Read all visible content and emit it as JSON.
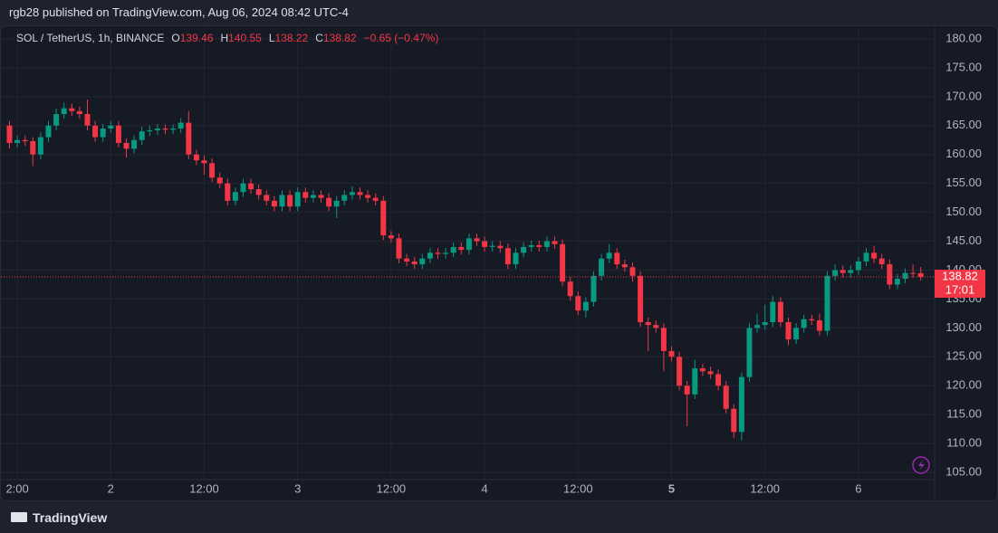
{
  "header": {
    "published": "rgb28 published on TradingView.com, Aug 06, 2024 08:42 UTC-4",
    "brand": "TradingView"
  },
  "legend": {
    "symbol": "SOL / TetherUS, 1h, BINANCE",
    "items": [
      {
        "key": "O",
        "value": "139.46"
      },
      {
        "key": "H",
        "value": "140.55"
      },
      {
        "key": "L",
        "value": "138.22"
      },
      {
        "key": "C",
        "value": "138.82"
      }
    ],
    "change": "−0.65 (−0.47%)"
  },
  "chart_data": {
    "type": "candlestick",
    "categories": [
      null,
      "2:00",
      null,
      null,
      null,
      null,
      null,
      null,
      null,
      null,
      null,
      null,
      null,
      "2",
      null,
      null,
      null,
      null,
      null,
      null,
      null,
      null,
      null,
      null,
      null,
      "12:00",
      null,
      null,
      null,
      null,
      null,
      null,
      null,
      null,
      null,
      null,
      null,
      "3",
      null,
      null,
      null,
      null,
      null,
      null,
      null,
      null,
      null,
      null,
      null,
      "12:00",
      null,
      null,
      null,
      null,
      null,
      null,
      null,
      null,
      null,
      null,
      null,
      "4",
      null,
      null,
      null,
      null,
      null,
      null,
      null,
      null,
      null,
      null,
      null,
      "12:00",
      null,
      null,
      null,
      null,
      null,
      null,
      null,
      null,
      null,
      null,
      null,
      "5",
      null,
      null,
      null,
      null,
      null,
      null,
      null,
      null,
      null,
      null,
      null,
      "12:00",
      null,
      null,
      null,
      null,
      null,
      null,
      null,
      null,
      null,
      null,
      null,
      "6",
      null,
      null,
      null,
      null,
      null,
      null,
      null,
      null
    ],
    "open": [
      165,
      162,
      162.5,
      162.3,
      160,
      163,
      165,
      167,
      168,
      167.5,
      167,
      165,
      163,
      164.5,
      165,
      162,
      161,
      162.5,
      164,
      164.2,
      164.5,
      164.3,
      164.5,
      165.5,
      160,
      159,
      158.5,
      156,
      155,
      152,
      153.5,
      155,
      154,
      153,
      152,
      151,
      153,
      151,
      153.5,
      152.5,
      153,
      152.5,
      151,
      152,
      153,
      153.5,
      153,
      152.5,
      152,
      146,
      145.5,
      142,
      141.5,
      141,
      142,
      143,
      142.8,
      143,
      144,
      143.5,
      145.5,
      145,
      144,
      144.2,
      143.8,
      141,
      143,
      144,
      144.3,
      144,
      145,
      144.5,
      138,
      135.5,
      133,
      134.5,
      139,
      142,
      143,
      141,
      140.5,
      139,
      131,
      130.5,
      130,
      126,
      125,
      120,
      118.5,
      123,
      122.5,
      122,
      120,
      116,
      112,
      121.5,
      130,
      130.5,
      131,
      134.5,
      131,
      128,
      130,
      131.5,
      131.3,
      129.5,
      139,
      140,
      139.5,
      140,
      141.5,
      143,
      142,
      141,
      137.5,
      138.5,
      139.5,
      139.46
    ],
    "high": [
      165.8,
      163.3,
      163.3,
      163,
      163.8,
      165.8,
      168,
      169,
      168.8,
      168.3,
      169.5,
      165.8,
      165.3,
      165.8,
      165.8,
      162.8,
      163.3,
      164.8,
      165,
      165.3,
      165.2,
      165.2,
      166.3,
      167.5,
      160.8,
      159.8,
      159.3,
      156.8,
      155.8,
      154.3,
      155.8,
      155.8,
      154.8,
      153.8,
      152.8,
      153.8,
      153.8,
      154.3,
      154.3,
      153.8,
      153.8,
      153.3,
      152.8,
      153.8,
      154.5,
      154.3,
      153.8,
      153.3,
      152.8,
      146.8,
      146.3,
      142.8,
      142.3,
      142.8,
      143.8,
      143.8,
      143.8,
      144.8,
      144.8,
      146.3,
      146.3,
      145.8,
      145,
      145,
      144.6,
      143.8,
      144.8,
      145.1,
      145.1,
      145.8,
      145.8,
      145.3,
      138.8,
      136.3,
      135.3,
      139.8,
      142.8,
      144.5,
      143.8,
      141.8,
      141.3,
      139.8,
      131.8,
      131.3,
      130.8,
      126.8,
      125.8,
      120.8,
      124.5,
      123.8,
      123.3,
      122.8,
      120.8,
      116.8,
      122.3,
      130.8,
      132.5,
      134,
      135.5,
      135.3,
      131.8,
      130.8,
      132.3,
      132.3,
      132.5,
      139.8,
      141,
      140.8,
      140.8,
      142.3,
      143.8,
      144.2,
      142.8,
      141.8,
      139.3,
      140.3,
      141,
      140.55
    ],
    "low": [
      161,
      161.2,
      161.5,
      158,
      159.2,
      162.2,
      164.2,
      166.2,
      166.7,
      166.2,
      164.2,
      162.2,
      162.2,
      163.7,
      161.2,
      159.5,
      160.2,
      161.7,
      163.2,
      163.4,
      163.5,
      163.5,
      163.7,
      159.2,
      158.2,
      156.5,
      155.2,
      154.2,
      151.2,
      151.2,
      152.7,
      153.2,
      152.2,
      151.2,
      150.2,
      150.2,
      150.2,
      150.2,
      151.7,
      151.7,
      151.7,
      150.2,
      149,
      151.2,
      152.2,
      152.2,
      151.7,
      151.2,
      145.2,
      144.7,
      141.2,
      140.7,
      140.2,
      140.2,
      141.2,
      142,
      142,
      142.2,
      142.7,
      142.7,
      144.2,
      143.2,
      143.2,
      143,
      140.2,
      140.2,
      142.2,
      143.2,
      143.2,
      143.2,
      143.7,
      137.2,
      134.7,
      132.2,
      131.8,
      133.7,
      138.2,
      141.2,
      140.2,
      139.7,
      138,
      130.2,
      126,
      129.2,
      122.5,
      124.2,
      119.2,
      113,
      117.7,
      121.7,
      121.2,
      119.2,
      115.2,
      111,
      110.5,
      120.7,
      129.2,
      129.7,
      130.2,
      130.2,
      127,
      127.2,
      129.2,
      130.5,
      128.7,
      128.7,
      138.2,
      138.7,
      138.7,
      139.2,
      140.7,
      141.2,
      140.2,
      136.7,
      136.7,
      137.7,
      138.7,
      138.22
    ],
    "close": [
      162,
      162.5,
      162.3,
      160,
      163,
      165,
      167,
      168,
      167.5,
      167,
      165,
      163,
      164.5,
      165,
      162,
      161,
      162.5,
      164,
      164.2,
      164.5,
      164.3,
      164.5,
      165.5,
      160,
      159,
      158.5,
      156,
      155,
      152,
      153.5,
      155,
      154,
      153,
      152,
      151,
      153,
      151,
      153.5,
      152.5,
      153,
      152.5,
      151,
      152,
      153,
      153.5,
      153,
      152.5,
      152,
      146,
      145.5,
      142,
      141.5,
      141,
      142,
      143,
      142.8,
      143,
      144,
      143.5,
      145.5,
      145,
      144,
      144.2,
      143.8,
      141,
      143,
      144,
      144.3,
      144,
      145,
      144.5,
      138,
      135.5,
      133,
      134.5,
      139,
      142,
      143,
      141,
      140.5,
      139,
      131,
      130.5,
      130,
      126,
      125,
      120,
      118.5,
      123,
      122.5,
      122,
      120,
      116,
      112,
      121.5,
      130,
      130.5,
      131,
      134.5,
      131,
      128,
      130,
      131.5,
      131.3,
      129.5,
      139,
      140,
      139.5,
      140,
      141.5,
      143,
      142,
      141,
      137.5,
      138.5,
      139.5,
      139.46,
      138.82
    ],
    "up_color": "#089981",
    "down_color": "#f23645",
    "ylim": [
      103.75,
      182.35
    ],
    "yticks": [
      {
        "value": 105,
        "label": "105.00"
      },
      {
        "value": 110,
        "label": "110.00"
      },
      {
        "value": 115,
        "label": "115.00"
      },
      {
        "value": 120,
        "label": "120.00"
      },
      {
        "value": 125,
        "label": "125.00"
      },
      {
        "value": 130,
        "label": "130.00"
      },
      {
        "value": 135,
        "label": "135.00"
      },
      {
        "value": 140,
        "label": "140.00"
      },
      {
        "value": 145,
        "label": "145.00"
      },
      {
        "value": 150,
        "label": "150.00"
      },
      {
        "value": 155,
        "label": "155.00"
      },
      {
        "value": 160,
        "label": "160.00"
      },
      {
        "value": 165,
        "label": "165.00"
      },
      {
        "value": 170,
        "label": "170.00"
      },
      {
        "value": 175,
        "label": "175.00"
      },
      {
        "value": 180,
        "label": "180.00"
      }
    ],
    "grid": true,
    "last_price": 138.82,
    "countdown": "17:01"
  }
}
